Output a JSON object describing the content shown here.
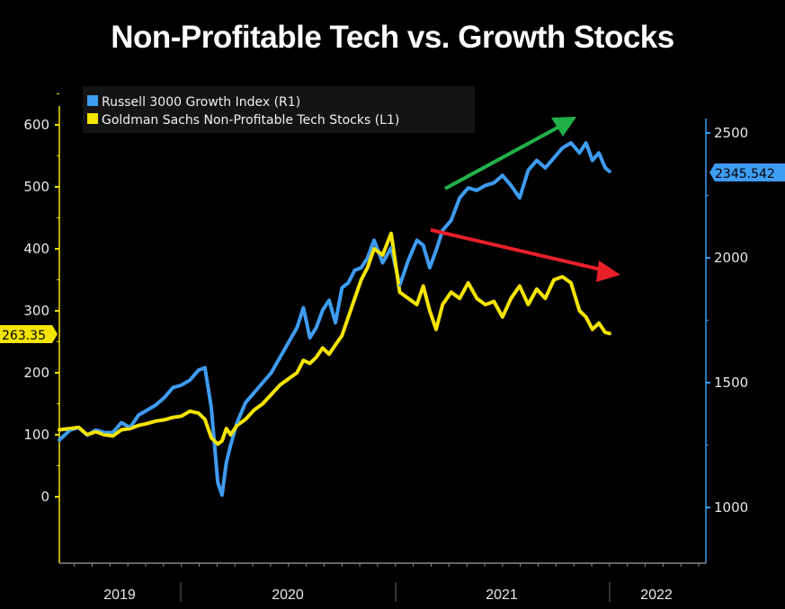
{
  "chart_data": {
    "type": "line",
    "title": "Non-Profitable Tech vs. Growth Stocks",
    "xlabel": "",
    "x_tick_labels": [
      "2019",
      "2020",
      "2021",
      "2022"
    ],
    "x_range": [
      2019.43,
      2022.45
    ],
    "left_axis": {
      "label": "L1",
      "ticks": [
        0,
        100,
        200,
        300,
        400,
        500,
        600
      ],
      "range": [
        -100,
        630
      ],
      "color": "#f5e400"
    },
    "right_axis": {
      "label": "R1",
      "ticks": [
        1000,
        1500,
        2000,
        2500
      ],
      "range": [
        800,
        2520
      ],
      "color": "#3e9cf2"
    },
    "legend": {
      "placement": "top-left",
      "entries": [
        {
          "name": "Russell 3000 Growth Index (R1)",
          "color": "#3e9cf2"
        },
        {
          "name": "Goldman Sachs Non-Profitable Tech Stocks (L1)",
          "color": "#f5e400"
        }
      ]
    },
    "last_value_badges": [
      {
        "series": "Russell 3000 Growth Index (R1)",
        "value": "2345.542",
        "axis": "right"
      },
      {
        "series": "Goldman Sachs Non-Profitable Tech Stocks (L1)",
        "value": "263.35",
        "axis": "left"
      }
    ],
    "annotations": [
      {
        "type": "arrow",
        "color": "#22b04a",
        "direction": "up",
        "meaning": "growth stocks rising"
      },
      {
        "type": "arrow",
        "color": "#e8202a",
        "direction": "down",
        "meaning": "non-profitable tech falling"
      }
    ],
    "series": [
      {
        "name": "Russell 3000 Growth Index (R1)",
        "axis": "right",
        "x": [
          2019.43,
          2019.48,
          2019.52,
          2019.56,
          2019.6,
          2019.64,
          2019.68,
          2019.72,
          2019.76,
          2019.8,
          2019.84,
          2019.88,
          2019.92,
          2019.96,
          2020.0,
          2020.04,
          2020.08,
          2020.11,
          2020.14,
          2020.17,
          2020.19,
          2020.21,
          2020.23,
          2020.26,
          2020.3,
          2020.34,
          2020.38,
          2020.42,
          2020.46,
          2020.5,
          2020.54,
          2020.57,
          2020.6,
          2020.63,
          2020.66,
          2020.69,
          2020.72,
          2020.75,
          2020.78,
          2020.81,
          2020.84,
          2020.87,
          2020.9,
          2020.94,
          2020.98,
          2021.02,
          2021.06,
          2021.1,
          2021.13,
          2021.16,
          2021.19,
          2021.22,
          2021.26,
          2021.3,
          2021.34,
          2021.38,
          2021.42,
          2021.46,
          2021.5,
          2021.54,
          2021.58,
          2021.62,
          2021.66,
          2021.7,
          2021.74,
          2021.78,
          2021.82,
          2021.86,
          2021.89,
          2021.92,
          2021.95,
          2021.98,
          2022.0
        ],
        "y": [
          1270,
          1310,
          1320,
          1290,
          1310,
          1300,
          1300,
          1340,
          1320,
          1370,
          1390,
          1410,
          1440,
          1480,
          1490,
          1510,
          1550,
          1560,
          1400,
          1100,
          1050,
          1180,
          1250,
          1340,
          1420,
          1460,
          1500,
          1540,
          1600,
          1660,
          1720,
          1800,
          1680,
          1720,
          1790,
          1830,
          1740,
          1880,
          1900,
          1950,
          1960,
          2000,
          2070,
          1980,
          2040,
          1890,
          1990,
          2070,
          2050,
          1960,
          2030,
          2110,
          2150,
          2240,
          2280,
          2270,
          2290,
          2300,
          2330,
          2290,
          2240,
          2350,
          2390,
          2360,
          2400,
          2440,
          2460,
          2420,
          2460,
          2390,
          2420,
          2360,
          2345.542
        ]
      },
      {
        "name": "Goldman Sachs Non-Profitable Tech Stocks (L1)",
        "axis": "left",
        "x": [
          2019.43,
          2019.48,
          2019.52,
          2019.56,
          2019.6,
          2019.64,
          2019.68,
          2019.72,
          2019.76,
          2019.8,
          2019.84,
          2019.88,
          2019.92,
          2019.96,
          2020.0,
          2020.04,
          2020.08,
          2020.11,
          2020.14,
          2020.17,
          2020.19,
          2020.21,
          2020.23,
          2020.26,
          2020.3,
          2020.34,
          2020.38,
          2020.42,
          2020.46,
          2020.5,
          2020.54,
          2020.57,
          2020.6,
          2020.63,
          2020.66,
          2020.69,
          2020.72,
          2020.75,
          2020.78,
          2020.81,
          2020.84,
          2020.87,
          2020.9,
          2020.94,
          2020.98,
          2021.02,
          2021.06,
          2021.1,
          2021.13,
          2021.16,
          2021.19,
          2021.22,
          2021.26,
          2021.3,
          2021.34,
          2021.38,
          2021.42,
          2021.46,
          2021.5,
          2021.54,
          2021.58,
          2021.62,
          2021.66,
          2021.7,
          2021.74,
          2021.78,
          2021.82,
          2021.86,
          2021.89,
          2021.92,
          2021.95,
          2021.98,
          2022.0
        ],
        "y": [
          108,
          110,
          112,
          100,
          105,
          100,
          98,
          108,
          110,
          115,
          118,
          122,
          124,
          128,
          130,
          138,
          135,
          125,
          95,
          85,
          90,
          110,
          100,
          115,
          125,
          140,
          150,
          165,
          180,
          190,
          200,
          220,
          215,
          225,
          240,
          230,
          245,
          260,
          290,
          320,
          350,
          370,
          400,
          390,
          425,
          330,
          320,
          310,
          340,
          300,
          270,
          310,
          330,
          320,
          345,
          320,
          310,
          315,
          290,
          320,
          340,
          310,
          335,
          320,
          350,
          355,
          345,
          300,
          290,
          270,
          280,
          265,
          263.35
        ]
      }
    ]
  }
}
